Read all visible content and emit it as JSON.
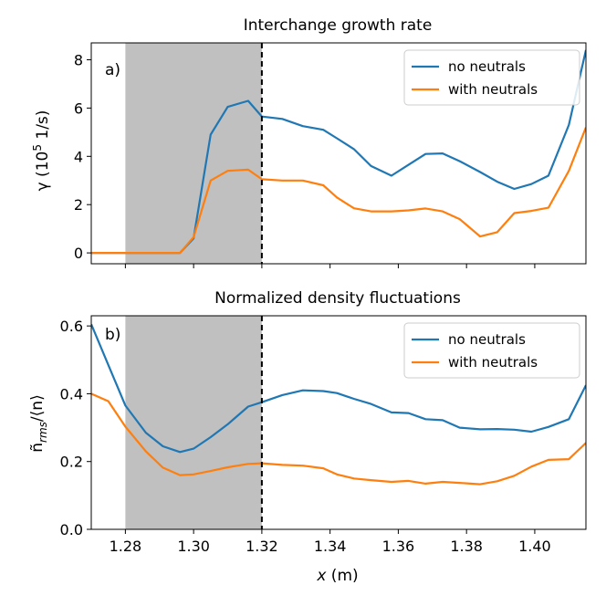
{
  "colors": {
    "no_neutrals": "#1f77b4",
    "with_neutrals": "#ff7f0e",
    "shade": "#c0c0c0",
    "separatrix": "#000000"
  },
  "chart_data": [
    {
      "type": "line",
      "panel": "a)",
      "title": "Interchange growth rate",
      "xlabel": "",
      "ylabel": "γ (10⁵ 1/s)",
      "xlim": [
        1.27,
        1.415
      ],
      "ylim": [
        -0.45,
        8.7
      ],
      "yticks": [
        0,
        2,
        4,
        6,
        8
      ],
      "shaded_region": [
        1.28,
        1.32
      ],
      "vertical_line": 1.32,
      "legend_location": "upper right",
      "series": [
        {
          "name": "no neutrals",
          "x": [
            1.27,
            1.275,
            1.28,
            1.286,
            1.291,
            1.296,
            1.3,
            1.305,
            1.31,
            1.316,
            1.32,
            1.326,
            1.332,
            1.338,
            1.342,
            1.347,
            1.352,
            1.358,
            1.363,
            1.368,
            1.373,
            1.378,
            1.384,
            1.389,
            1.394,
            1.399,
            1.404,
            1.41,
            1.415
          ],
          "values": [
            0,
            0,
            0,
            0,
            0,
            0,
            0.6,
            4.9,
            6.05,
            6.3,
            5.65,
            5.55,
            5.25,
            5.1,
            4.75,
            4.3,
            3.6,
            3.2,
            3.65,
            4.1,
            4.12,
            3.8,
            3.35,
            2.95,
            2.65,
            2.85,
            3.2,
            5.3,
            8.4
          ]
        },
        {
          "name": "with neutrals",
          "x": [
            1.27,
            1.275,
            1.28,
            1.286,
            1.291,
            1.296,
            1.3,
            1.305,
            1.31,
            1.316,
            1.32,
            1.326,
            1.332,
            1.338,
            1.342,
            1.347,
            1.352,
            1.358,
            1.363,
            1.368,
            1.373,
            1.378,
            1.384,
            1.389,
            1.394,
            1.399,
            1.404,
            1.41,
            1.415
          ],
          "values": [
            0,
            0,
            0,
            0,
            0,
            0,
            0.65,
            3.0,
            3.4,
            3.45,
            3.05,
            3.0,
            3.0,
            2.8,
            2.3,
            1.85,
            1.72,
            1.72,
            1.76,
            1.84,
            1.72,
            1.4,
            0.68,
            0.86,
            1.65,
            1.74,
            1.87,
            3.4,
            5.2
          ]
        }
      ]
    },
    {
      "type": "line",
      "panel": "b)",
      "title": "Normalized density fluctuations",
      "xlabel": "x (m)",
      "ylabel": "ñ_rms/⟨n⟩",
      "xlim": [
        1.27,
        1.415
      ],
      "ylim": [
        0.0,
        0.63
      ],
      "yticks": [
        0.0,
        0.2,
        0.4,
        0.6
      ],
      "xticks": [
        1.28,
        1.3,
        1.32,
        1.34,
        1.36,
        1.38,
        1.4
      ],
      "shaded_region": [
        1.28,
        1.32
      ],
      "vertical_line": 1.32,
      "legend_location": "upper right",
      "series": [
        {
          "name": "no neutrals",
          "x": [
            1.27,
            1.275,
            1.28,
            1.286,
            1.291,
            1.296,
            1.3,
            1.305,
            1.31,
            1.316,
            1.32,
            1.326,
            1.332,
            1.338,
            1.342,
            1.347,
            1.352,
            1.358,
            1.363,
            1.368,
            1.373,
            1.378,
            1.384,
            1.389,
            1.394,
            1.399,
            1.404,
            1.41,
            1.415
          ],
          "values": [
            0.605,
            0.485,
            0.365,
            0.285,
            0.245,
            0.228,
            0.238,
            0.272,
            0.31,
            0.362,
            0.375,
            0.396,
            0.41,
            0.408,
            0.402,
            0.385,
            0.37,
            0.345,
            0.343,
            0.325,
            0.322,
            0.3,
            0.295,
            0.296,
            0.294,
            0.288,
            0.302,
            0.325,
            0.425
          ]
        },
        {
          "name": "with neutrals",
          "x": [
            1.27,
            1.275,
            1.28,
            1.286,
            1.291,
            1.296,
            1.3,
            1.305,
            1.31,
            1.316,
            1.32,
            1.326,
            1.332,
            1.338,
            1.342,
            1.347,
            1.352,
            1.358,
            1.363,
            1.368,
            1.373,
            1.378,
            1.384,
            1.389,
            1.394,
            1.399,
            1.404,
            1.41,
            1.415
          ],
          "values": [
            0.4,
            0.378,
            0.303,
            0.23,
            0.182,
            0.16,
            0.162,
            0.172,
            0.183,
            0.193,
            0.195,
            0.19,
            0.188,
            0.18,
            0.162,
            0.15,
            0.145,
            0.14,
            0.143,
            0.135,
            0.14,
            0.137,
            0.133,
            0.142,
            0.158,
            0.185,
            0.205,
            0.207,
            0.255
          ]
        }
      ]
    }
  ]
}
